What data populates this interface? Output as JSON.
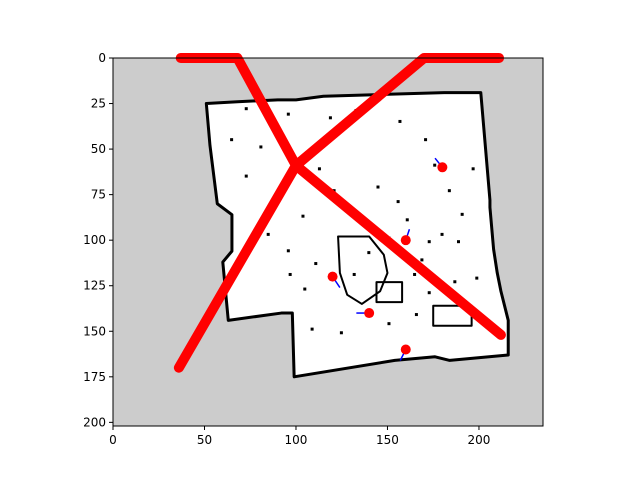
{
  "chart_data": {
    "type": "scatter",
    "background": "occupancy-grid-map",
    "xlim": [
      0,
      235
    ],
    "ylim": [
      202,
      0
    ],
    "x_ticks": [
      0,
      50,
      100,
      150,
      200
    ],
    "y_ticks": [
      0,
      25,
      50,
      75,
      100,
      125,
      150,
      175,
      200
    ],
    "x_tick_labels": [
      "0",
      "50",
      "100",
      "150",
      "200"
    ],
    "y_tick_labels": [
      "0",
      "25",
      "50",
      "75",
      "100",
      "125",
      "150",
      "175",
      "200"
    ],
    "colors": {
      "unknown": "#cccccc",
      "free": "#ffffff",
      "occupied": "#000000",
      "path": "#ff0000",
      "particle": "#ff0000",
      "heading": "#0000ff"
    },
    "path": [
      {
        "x": 37,
        "y": 0
      },
      {
        "x": 68,
        "y": 0
      },
      {
        "x": 100,
        "y": 59
      },
      {
        "x": 212,
        "y": 152
      }
    ],
    "path2": [
      {
        "x": 36,
        "y": 170
      },
      {
        "x": 100,
        "y": 59
      },
      {
        "x": 170,
        "y": 0
      },
      {
        "x": 211,
        "y": 0
      }
    ],
    "particles": [
      {
        "x": 180,
        "y": 60,
        "heading_dx": -4,
        "heading_dy": -5
      },
      {
        "x": 160,
        "y": 100,
        "heading_dx": 2,
        "heading_dy": -6
      },
      {
        "x": 120,
        "y": 120,
        "heading_dx": 4,
        "heading_dy": 6
      },
      {
        "x": 140,
        "y": 140,
        "heading_dx": -7,
        "heading_dy": 0
      },
      {
        "x": 160,
        "y": 160,
        "heading_dx": -3,
        "heading_dy": 6
      }
    ]
  }
}
